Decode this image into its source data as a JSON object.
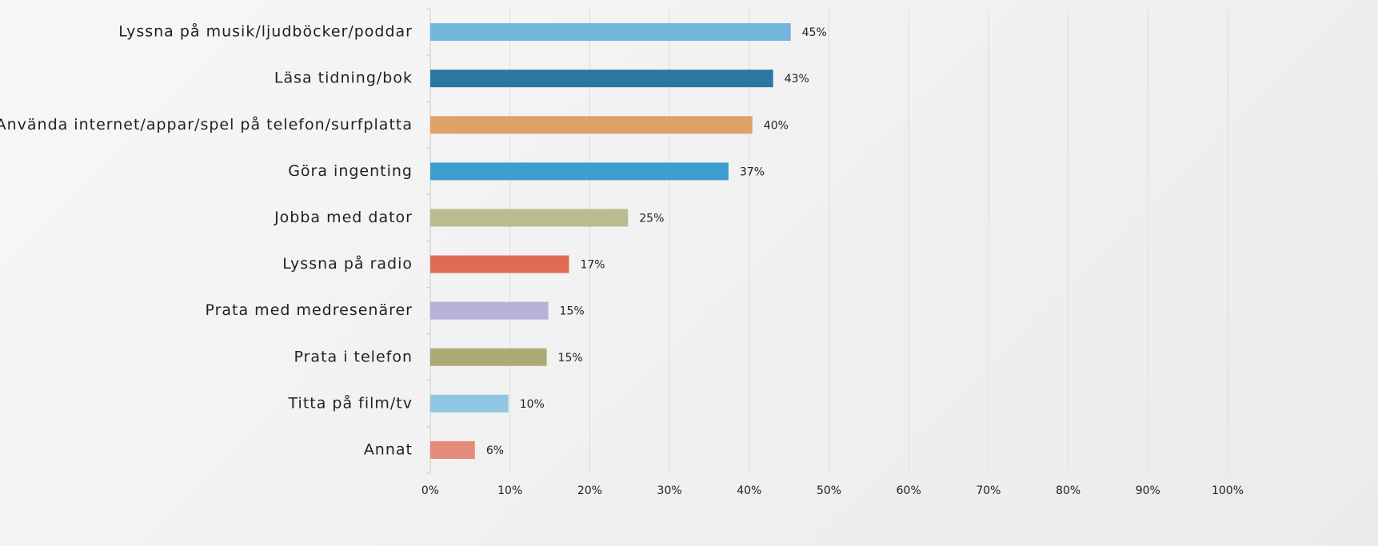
{
  "chart_data": {
    "type": "hbar",
    "categories": [
      "Lyssna på musik/ljudböcker/poddar",
      "Läsa tidning/bok",
      "Använda internet/appar/spel på telefon/surfplatta",
      "Göra ingenting",
      "Jobba med dator",
      "Lyssna på radio",
      "Prata med medresenärer",
      "Prata i telefon",
      "Titta på film/tv",
      "Annat"
    ],
    "values": [
      45.2,
      43,
      40.4,
      37.4,
      24.8,
      17.4,
      14.8,
      14.6,
      9.8,
      5.6
    ],
    "value_labels": [
      "45%",
      "43%",
      "40%",
      "37%",
      "25%",
      "17%",
      "15%",
      "15%",
      "10%",
      "6%"
    ],
    "colors": [
      "#72b6dc",
      "#2b789f",
      "#e0a06a",
      "#3b9dd0",
      "#bbbb8f",
      "#e06b55",
      "#b8b0d6",
      "#aaaa72",
      "#8fc6e3",
      "#e68a7a"
    ],
    "xlim": [
      0,
      100
    ],
    "xticks": [
      {
        "value": 0,
        "label": "0%"
      },
      {
        "value": 10,
        "label": "10%"
      },
      {
        "value": 20,
        "label": "20%"
      },
      {
        "value": 30,
        "label": "30%"
      },
      {
        "value": 40,
        "label": "40%"
      },
      {
        "value": 50,
        "label": "50%"
      },
      {
        "value": 60,
        "label": "60%"
      },
      {
        "value": 70,
        "label": "70%"
      },
      {
        "value": 80,
        "label": "80%"
      },
      {
        "value": 90,
        "label": "90%"
      },
      {
        "value": 100,
        "label": "100%"
      }
    ],
    "grid": true
  }
}
